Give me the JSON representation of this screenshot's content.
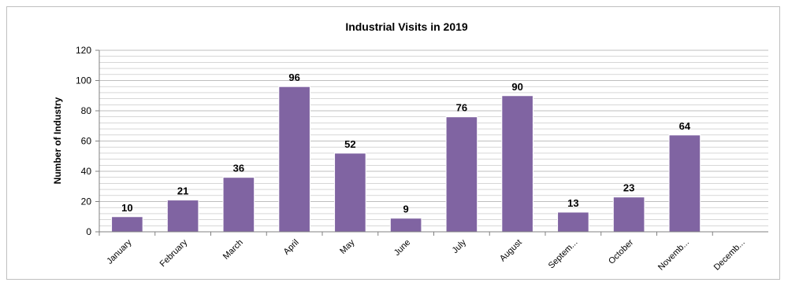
{
  "chart_data": {
    "type": "bar",
    "title": "Industrial Visits in 2019",
    "xlabel": "",
    "ylabel": "Number of Industry",
    "categories": [
      "January",
      "February",
      "March",
      "April",
      "May",
      "June",
      "July",
      "August",
      "Septem...",
      "October",
      "Novemb...",
      "Decemb..."
    ],
    "values": [
      10,
      21,
      36,
      96,
      52,
      9,
      76,
      90,
      13,
      23,
      64,
      null
    ],
    "data_labels": [
      "10",
      "21",
      "36",
      "96",
      "52",
      "9",
      "76",
      "90",
      "13",
      "23",
      "64",
      ""
    ],
    "ylim": [
      0,
      120
    ],
    "yticks": [
      0,
      20,
      40,
      60,
      80,
      100,
      120
    ],
    "grid": true,
    "legend": "none",
    "colors": {
      "bar": "#8064a2",
      "grid": "#bfbfbf",
      "axis": "#808080"
    }
  }
}
